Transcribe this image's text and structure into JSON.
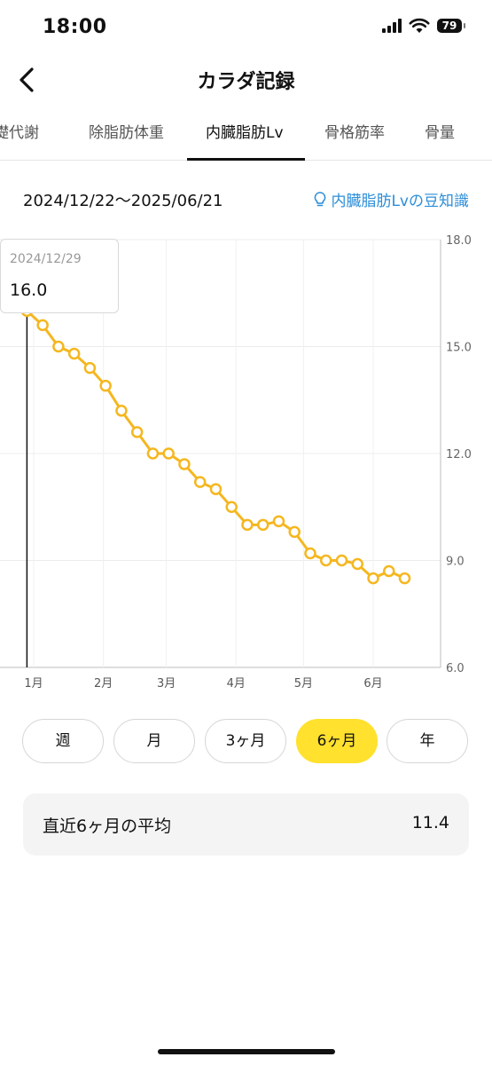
{
  "status_bar": {
    "time": "18:00",
    "battery": "79"
  },
  "nav": {
    "title": "カラダ記録"
  },
  "tabs": [
    {
      "label": "基礎代謝",
      "active": false
    },
    {
      "label": "除脂肪体重",
      "active": false
    },
    {
      "label": "内臓脂肪Lv",
      "active": true
    },
    {
      "label": "骨格筋率",
      "active": false
    },
    {
      "label": "骨量",
      "active": false
    }
  ],
  "date_range": "2024/12/22〜2025/06/21",
  "tips_link": "内臓脂肪Lvの豆知識",
  "tooltip": {
    "date": "2024/12/29",
    "value": "16.0"
  },
  "chart_data": {
    "type": "line",
    "title": "",
    "xlabel": "",
    "ylabel": "",
    "ylim": [
      6.0,
      18.0
    ],
    "y_ticks": [
      "18.0",
      "15.0",
      "12.0",
      "9.0",
      "6.0"
    ],
    "x_ticks": [
      "1月",
      "2月",
      "3月",
      "4月",
      "5月",
      "6月"
    ],
    "x_tick_dates": [
      "2025-01-01",
      "2025-02-01",
      "2025-03-01",
      "2025-04-01",
      "2025-05-01",
      "2025-06-01"
    ],
    "grid": true,
    "color": "#f5b71f",
    "selected_date": "2024-12-29",
    "series": [
      {
        "x": [
          "2024-12-29",
          "2025-01-05",
          "2025-01-12",
          "2025-01-19",
          "2025-01-26",
          "2025-02-02",
          "2025-02-09",
          "2025-02-16",
          "2025-02-23",
          "2025-03-02",
          "2025-03-09",
          "2025-03-16",
          "2025-03-23",
          "2025-03-30",
          "2025-04-06",
          "2025-04-13",
          "2025-04-20",
          "2025-04-27",
          "2025-05-04",
          "2025-05-11",
          "2025-05-18",
          "2025-05-25",
          "2025-06-01",
          "2025-06-08",
          "2025-06-15"
        ],
        "values": [
          16.0,
          15.6,
          15.0,
          14.8,
          14.4,
          13.9,
          13.2,
          12.6,
          12.0,
          12.0,
          11.7,
          11.2,
          11.0,
          10.5,
          10.0,
          10.0,
          10.1,
          9.8,
          9.2,
          9.0,
          9.0,
          8.9,
          8.5,
          8.7,
          8.5
        ]
      }
    ]
  },
  "periods": [
    {
      "label": "週",
      "active": false
    },
    {
      "label": "月",
      "active": false
    },
    {
      "label": "3ヶ月",
      "active": false
    },
    {
      "label": "6ヶ月",
      "active": true
    },
    {
      "label": "年",
      "active": false
    }
  ],
  "average": {
    "label": "直近6ヶ月の平均",
    "value": "11.4"
  }
}
